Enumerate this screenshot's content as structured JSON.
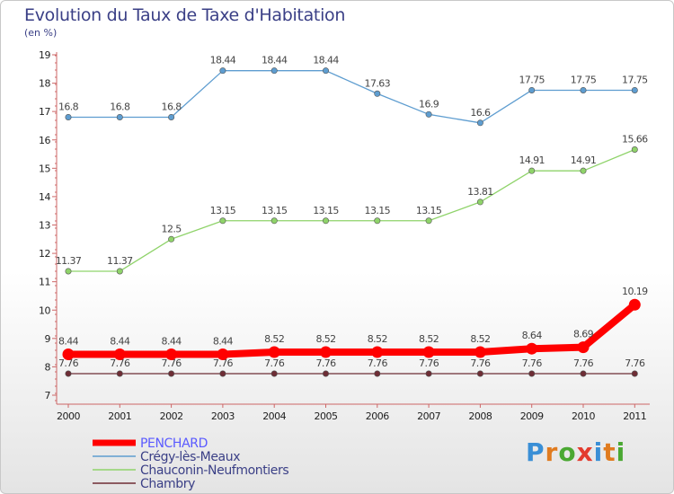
{
  "title": "Evolution du Taux de Taxe d'Habitation",
  "subtitle": "(en %)",
  "logo": {
    "text": "Proxiti",
    "letters": [
      "P",
      "r",
      "o",
      "x",
      "i",
      "t",
      "i"
    ],
    "colors": [
      "#3a8fd6",
      "#e07b1f",
      "#4aa832",
      "#e33b2e",
      "#3a8fd6",
      "#e07b1f",
      "#4aa832"
    ]
  },
  "chart_data": {
    "type": "line",
    "title": "Evolution du Taux de Taxe d'Habitation",
    "ylabel": "(en %)",
    "xlabel": "",
    "ylim": [
      7,
      19
    ],
    "yticks": [
      7,
      8,
      9,
      10,
      11,
      12,
      13,
      14,
      15,
      16,
      17,
      18,
      19
    ],
    "categories": [
      "2000",
      "2001",
      "2002",
      "2003",
      "2004",
      "2005",
      "2006",
      "2007",
      "2008",
      "2009",
      "2010",
      "2011"
    ],
    "grid": false,
    "legend": "bottom-left",
    "series": [
      {
        "name": "Chambry",
        "color": "#6e2d35",
        "labels": [
          "7.76",
          "7.76",
          "7.76",
          "7.76",
          "7.76",
          "7.76",
          "7.76",
          "7.76",
          "7.76",
          "7.76",
          "7.76",
          "7.76"
        ],
        "values": [
          7.76,
          7.76,
          7.76,
          7.76,
          7.76,
          7.76,
          7.76,
          7.76,
          7.76,
          7.76,
          7.76,
          7.76
        ]
      },
      {
        "name": "Chauconin-Neufmontiers",
        "color": "#8fd36a",
        "labels": [
          "11.37",
          "11.37",
          "12.5",
          "13.15",
          "13.15",
          "13.15",
          "13.15",
          "13.15",
          "13.81",
          "14.91",
          "14.91",
          "15.66"
        ],
        "values": [
          11.37,
          11.37,
          12.5,
          13.15,
          13.15,
          13.15,
          13.15,
          13.15,
          13.81,
          14.91,
          14.91,
          15.66
        ]
      },
      {
        "name": "Crégy-lès-Meaux",
        "color": "#5e9dd0",
        "labels": [
          "16.8",
          "16.8",
          "16.8",
          "18.44",
          "18.44",
          "18.44",
          "17.63",
          "16.9",
          "16.6",
          "17.75",
          "17.75",
          "17.75"
        ],
        "values": [
          16.8,
          16.8,
          16.8,
          18.44,
          18.44,
          18.44,
          17.63,
          16.9,
          16.6,
          17.75,
          17.75,
          17.75
        ]
      },
      {
        "name": "PENCHARD",
        "color": "#ff0000",
        "labels": [
          "8.44",
          "8.44",
          "8.44",
          "8.44",
          "8.52",
          "8.52",
          "8.52",
          "8.52",
          "8.52",
          "8.64",
          "8.69",
          "10.19"
        ],
        "values": [
          8.44,
          8.44,
          8.44,
          8.44,
          8.52,
          8.52,
          8.52,
          8.52,
          8.52,
          8.64,
          8.69,
          10.19
        ]
      }
    ]
  },
  "legend": {
    "items": [
      {
        "label": "PENCHARD",
        "color": "#ff0000",
        "text_color": "#5a5aff"
      },
      {
        "label": "Crégy-lès-Meaux",
        "color": "#5e9dd0",
        "text_color": "#3a3f86"
      },
      {
        "label": "Chauconin-Neufmontiers",
        "color": "#8fd36a",
        "text_color": "#3a3f86"
      },
      {
        "label": "Chambry",
        "color": "#6e2d35",
        "text_color": "#3a3f86"
      }
    ]
  }
}
